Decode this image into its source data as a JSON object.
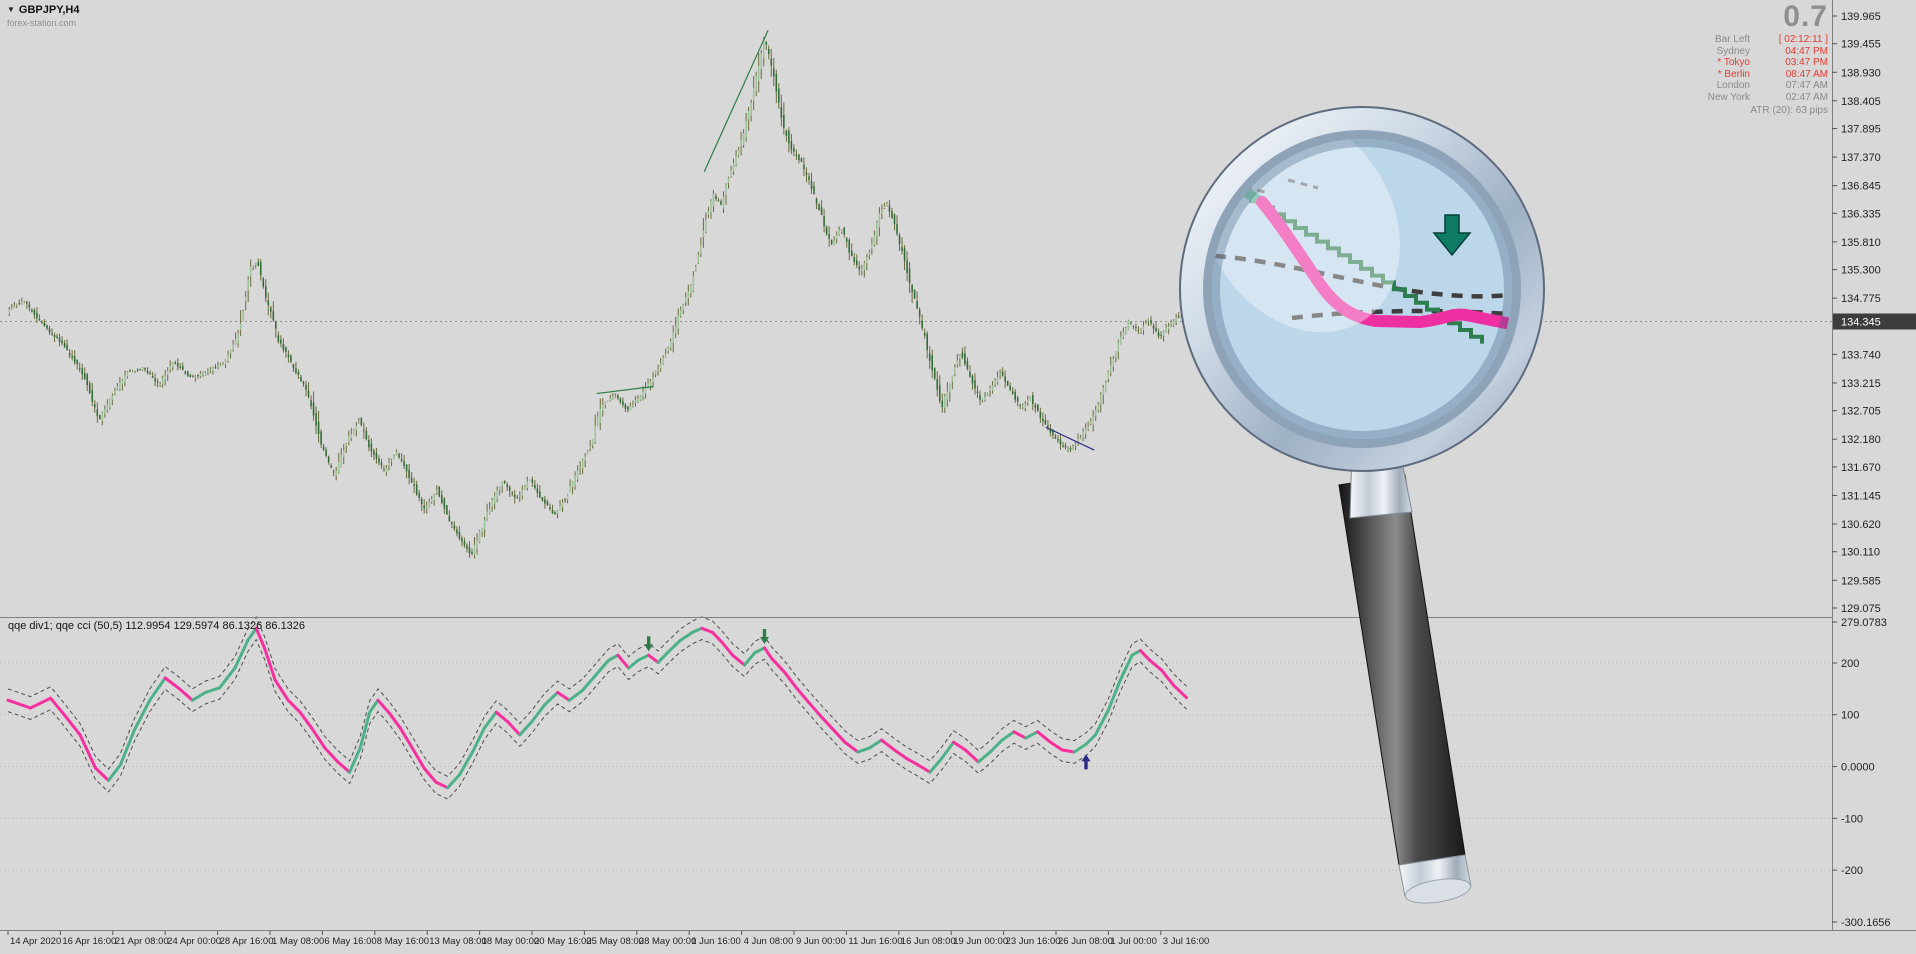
{
  "window": {
    "symbol_label": "GBPJPY,H4",
    "watermark": "forex-station.com"
  },
  "info_panel": {
    "big_value": "0.7",
    "rows": [
      {
        "label": "Bar Left",
        "value": "[ 02:12:11 ]",
        "label_color": "#8a8a8a",
        "value_color": "#e03c31"
      },
      {
        "label": "Sydney",
        "value": "04:47 PM",
        "label_color": "#8a8a8a",
        "value_color": "#e03c31"
      },
      {
        "label": "* Tokyo",
        "value": "03:47 PM",
        "label_color": "#e03c31",
        "value_color": "#e03c31"
      },
      {
        "label": "* Berlin",
        "value": "08:47 AM",
        "label_color": "#e03c31",
        "value_color": "#e03c31"
      },
      {
        "label": "London",
        "value": "07:47 AM",
        "label_color": "#8a8a8a",
        "value_color": "#8a8a8a"
      },
      {
        "label": "New York",
        "value": "02:47 AM",
        "label_color": "#8a8a8a",
        "value_color": "#8a8a8a"
      }
    ],
    "atr": "ATR (20): 63 pips"
  },
  "price_axis": {
    "labels": [
      "139.965",
      "139.455",
      "138.930",
      "138.405",
      "137.895",
      "137.370",
      "136.845",
      "136.335",
      "135.810",
      "135.300",
      "134.775",
      "133.740",
      "133.215",
      "132.705",
      "132.180",
      "131.670",
      "131.145",
      "130.620",
      "130.110",
      "129.585",
      "129.075"
    ],
    "current_price": "134.345",
    "range": [
      129.075,
      139.965
    ]
  },
  "indicator_panel": {
    "label": "qqe div1; qqe cci (50,5) 112.9954 129.5974 86.1326 86.1326",
    "axis_labels": [
      "279.0783",
      "200",
      "100",
      "0.0000",
      "-100",
      "-200",
      "-300.1656"
    ],
    "range": [
      -300.1656,
      279.0783
    ]
  },
  "time_axis": [
    "14 Apr 2020",
    "16 Apr 16:00",
    "21 Apr 08:00",
    "24 Apr 00:00",
    "28 Apr 16:00",
    "1 May 08:00",
    "6 May 16:00",
    "8 May 16:00",
    "13 May 08:00",
    "18 May 00:00",
    "20 May 16:00",
    "25 May 08:00",
    "28 May 00:00",
    "1 Jun 16:00",
    "4 Jun 08:00",
    "9 Jun 00:00",
    "11 Jun 16:00",
    "16 Jun 08:00",
    "19 Jun 00:00",
    "23 Jun 16:00",
    "26 Jun 08:00",
    "1 Jul 00:00",
    "3 Jul 16:00"
  ],
  "chart_data": [
    {
      "type": "candlestick",
      "symbol": "GBPJPY",
      "timeframe": "H4",
      "y_range": [
        129.075,
        139.965
      ],
      "bar_count": 470,
      "current_price": 134.345,
      "price_path": [
        [
          0.0,
          134.52
        ],
        [
          0.014,
          134.74
        ],
        [
          0.031,
          134.28
        ],
        [
          0.048,
          133.91
        ],
        [
          0.065,
          133.36
        ],
        [
          0.078,
          132.53
        ],
        [
          0.088,
          132.94
        ],
        [
          0.102,
          133.42
        ],
        [
          0.116,
          133.49
        ],
        [
          0.129,
          133.18
        ],
        [
          0.141,
          133.6
        ],
        [
          0.156,
          133.31
        ],
        [
          0.169,
          133.42
        ],
        [
          0.184,
          133.6
        ],
        [
          0.196,
          134.1
        ],
        [
          0.206,
          135.33
        ],
        [
          0.212,
          135.44
        ],
        [
          0.22,
          134.74
        ],
        [
          0.23,
          134.0
        ],
        [
          0.243,
          133.49
        ],
        [
          0.254,
          133.05
        ],
        [
          0.266,
          132.07
        ],
        [
          0.277,
          131.52
        ],
        [
          0.288,
          132.16
        ],
        [
          0.298,
          132.53
        ],
        [
          0.308,
          131.98
        ],
        [
          0.319,
          131.61
        ],
        [
          0.33,
          131.94
        ],
        [
          0.342,
          131.43
        ],
        [
          0.353,
          130.88
        ],
        [
          0.364,
          131.25
        ],
        [
          0.374,
          130.69
        ],
        [
          0.384,
          130.33
        ],
        [
          0.393,
          130.05
        ],
        [
          0.401,
          130.51
        ],
        [
          0.409,
          130.97
        ],
        [
          0.42,
          131.43
        ],
        [
          0.431,
          131.06
        ],
        [
          0.442,
          131.47
        ],
        [
          0.452,
          131.1
        ],
        [
          0.463,
          130.79
        ],
        [
          0.474,
          131.15
        ],
        [
          0.484,
          131.65
        ],
        [
          0.494,
          132.07
        ],
        [
          0.503,
          132.81
        ],
        [
          0.514,
          132.99
        ],
        [
          0.525,
          132.72
        ],
        [
          0.535,
          132.94
        ],
        [
          0.545,
          133.27
        ],
        [
          0.553,
          133.54
        ],
        [
          0.562,
          134.0
        ],
        [
          0.57,
          134.56
        ],
        [
          0.579,
          135.02
        ],
        [
          0.585,
          135.57
        ],
        [
          0.592,
          136.3
        ],
        [
          0.598,
          136.67
        ],
        [
          0.604,
          136.49
        ],
        [
          0.611,
          137.04
        ],
        [
          0.618,
          137.41
        ],
        [
          0.624,
          137.87
        ],
        [
          0.63,
          138.42
        ],
        [
          0.636,
          139.06
        ],
        [
          0.641,
          139.56
        ],
        [
          0.646,
          139.16
        ],
        [
          0.651,
          138.6
        ],
        [
          0.657,
          137.96
        ],
        [
          0.664,
          137.5
        ],
        [
          0.672,
          137.28
        ],
        [
          0.68,
          136.86
        ],
        [
          0.689,
          136.3
        ],
        [
          0.697,
          135.75
        ],
        [
          0.706,
          136.07
        ],
        [
          0.714,
          135.57
        ],
        [
          0.722,
          135.26
        ],
        [
          0.731,
          135.7
        ],
        [
          0.739,
          136.36
        ],
        [
          0.744,
          136.54
        ],
        [
          0.751,
          136.12
        ],
        [
          0.759,
          135.51
        ],
        [
          0.767,
          134.83
        ],
        [
          0.776,
          134.1
        ],
        [
          0.784,
          133.36
        ],
        [
          0.791,
          132.75
        ],
        [
          0.799,
          133.31
        ],
        [
          0.807,
          133.78
        ],
        [
          0.816,
          133.27
        ],
        [
          0.824,
          132.86
        ],
        [
          0.832,
          133.12
        ],
        [
          0.841,
          133.42
        ],
        [
          0.849,
          133.08
        ],
        [
          0.858,
          132.75
        ],
        [
          0.866,
          132.94
        ],
        [
          0.875,
          132.57
        ],
        [
          0.883,
          132.31
        ],
        [
          0.892,
          132.07
        ],
        [
          0.9,
          131.98
        ],
        [
          0.909,
          132.25
        ],
        [
          0.917,
          132.49
        ],
        [
          0.924,
          132.86
        ],
        [
          0.932,
          133.42
        ],
        [
          0.941,
          133.97
        ],
        [
          0.949,
          134.34
        ],
        [
          0.958,
          134.16
        ],
        [
          0.966,
          134.38
        ],
        [
          0.975,
          134.05
        ],
        [
          0.983,
          134.27
        ],
        [
          0.992,
          134.45
        ],
        [
          1.0,
          134.35
        ]
      ],
      "trendlines": [
        {
          "t1": 0.589,
          "v1": 137.1,
          "t2": 0.643,
          "v2": 139.7,
          "color_key": "trendline_green"
        },
        {
          "t1": 0.498,
          "v1": 133.02,
          "t2": 0.546,
          "v2": 133.15,
          "color_key": "trendline_green"
        },
        {
          "t1": 0.878,
          "v1": 132.4,
          "t2": 0.919,
          "v2": 131.98,
          "color_key": "trendline_navy"
        }
      ]
    },
    {
      "type": "line",
      "name": "qqe cci (50,5)",
      "y_range": [
        -300.1656,
        279.0783
      ],
      "grid_levels": [
        200,
        100,
        0,
        -100,
        -200
      ],
      "band_offset": 22,
      "points": [
        [
          0.0,
          128,
          "p"
        ],
        [
          0.019,
          113,
          "p"
        ],
        [
          0.036,
          132,
          "p"
        ],
        [
          0.048,
          99,
          "p"
        ],
        [
          0.061,
          61,
          "p"
        ],
        [
          0.074,
          -3,
          "p"
        ],
        [
          0.085,
          -27,
          "p"
        ],
        [
          0.095,
          3,
          "g"
        ],
        [
          0.107,
          71,
          "g"
        ],
        [
          0.12,
          128,
          "g"
        ],
        [
          0.133,
          171,
          "g"
        ],
        [
          0.144,
          152,
          "p"
        ],
        [
          0.156,
          128,
          "p"
        ],
        [
          0.167,
          143,
          "g"
        ],
        [
          0.179,
          152,
          "g"
        ],
        [
          0.192,
          190,
          "g"
        ],
        [
          0.203,
          244,
          "g"
        ],
        [
          0.21,
          267,
          "g"
        ],
        [
          0.217,
          229,
          "p"
        ],
        [
          0.226,
          167,
          "p"
        ],
        [
          0.237,
          128,
          "p"
        ],
        [
          0.247,
          105,
          "p"
        ],
        [
          0.257,
          74,
          "p"
        ],
        [
          0.268,
          36,
          "p"
        ],
        [
          0.279,
          9,
          "p"
        ],
        [
          0.289,
          -11,
          "p"
        ],
        [
          0.298,
          36,
          "g"
        ],
        [
          0.306,
          105,
          "g"
        ],
        [
          0.313,
          128,
          "g"
        ],
        [
          0.322,
          105,
          "p"
        ],
        [
          0.332,
          74,
          "p"
        ],
        [
          0.342,
          36,
          "p"
        ],
        [
          0.352,
          -3,
          "p"
        ],
        [
          0.362,
          -30,
          "p"
        ],
        [
          0.372,
          -41,
          "p"
        ],
        [
          0.382,
          -16,
          "g"
        ],
        [
          0.393,
          28,
          "g"
        ],
        [
          0.403,
          74,
          "g"
        ],
        [
          0.413,
          105,
          "g"
        ],
        [
          0.423,
          86,
          "p"
        ],
        [
          0.433,
          61,
          "p"
        ],
        [
          0.443,
          86,
          "g"
        ],
        [
          0.454,
          119,
          "g"
        ],
        [
          0.465,
          143,
          "g"
        ],
        [
          0.475,
          128,
          "p"
        ],
        [
          0.486,
          147,
          "g"
        ],
        [
          0.497,
          176,
          "g"
        ],
        [
          0.508,
          205,
          "g"
        ],
        [
          0.516,
          215,
          "g"
        ],
        [
          0.525,
          190,
          "p"
        ],
        [
          0.533,
          205,
          "g"
        ],
        [
          0.542,
          215,
          "g"
        ],
        [
          0.55,
          201,
          "p"
        ],
        [
          0.558,
          220,
          "g"
        ],
        [
          0.569,
          244,
          "g"
        ],
        [
          0.579,
          259,
          "g"
        ],
        [
          0.587,
          267,
          "g"
        ],
        [
          0.596,
          259,
          "p"
        ],
        [
          0.604,
          240,
          "p"
        ],
        [
          0.613,
          215,
          "p"
        ],
        [
          0.623,
          196,
          "p"
        ],
        [
          0.632,
          220,
          "g"
        ],
        [
          0.64,
          229,
          "g"
        ],
        [
          0.646,
          209,
          "p"
        ],
        [
          0.657,
          182,
          "p"
        ],
        [
          0.667,
          152,
          "p"
        ],
        [
          0.677,
          125,
          "p"
        ],
        [
          0.687,
          99,
          "p"
        ],
        [
          0.697,
          74,
          "p"
        ],
        [
          0.708,
          47,
          "p"
        ],
        [
          0.719,
          28,
          "p"
        ],
        [
          0.729,
          36,
          "g"
        ],
        [
          0.739,
          51,
          "g"
        ],
        [
          0.75,
          32,
          "p"
        ],
        [
          0.76,
          16,
          "p"
        ],
        [
          0.77,
          3,
          "p"
        ],
        [
          0.78,
          -11,
          "p"
        ],
        [
          0.79,
          16,
          "g"
        ],
        [
          0.8,
          47,
          "g"
        ],
        [
          0.81,
          32,
          "p"
        ],
        [
          0.821,
          9,
          "p"
        ],
        [
          0.831,
          28,
          "g"
        ],
        [
          0.841,
          51,
          "g"
        ],
        [
          0.851,
          67,
          "g"
        ],
        [
          0.861,
          55,
          "p"
        ],
        [
          0.871,
          67,
          "g"
        ],
        [
          0.882,
          47,
          "p"
        ],
        [
          0.892,
          32,
          "p"
        ],
        [
          0.902,
          28,
          "p"
        ],
        [
          0.912,
          43,
          "g"
        ],
        [
          0.92,
          61,
          "g"
        ],
        [
          0.931,
          109,
          "g"
        ],
        [
          0.941,
          167,
          "g"
        ],
        [
          0.951,
          215,
          "g"
        ],
        [
          0.958,
          224,
          "g"
        ],
        [
          0.966,
          205,
          "p"
        ],
        [
          0.976,
          186,
          "p"
        ],
        [
          0.986,
          157,
          "p"
        ],
        [
          0.997,
          133,
          "p"
        ]
      ],
      "arrows": [
        {
          "t": 0.542,
          "v": 238,
          "dir": "down",
          "color_key": "arrow_down"
        },
        {
          "t": 0.64,
          "v": 252,
          "dir": "down",
          "color_key": "arrow_down"
        },
        {
          "t": 0.912,
          "v": 8,
          "dir": "up",
          "color_key": "arrow_up"
        }
      ]
    }
  ],
  "colors": {
    "background": "#d8d8d8",
    "axis_text": "#1f1f1f",
    "separator": "#808080",
    "current_price_bg": "#3d3d3d",
    "current_price_text": "#ffffff",
    "candle_up_fill": "#9dc49a",
    "candle_down_fill": "#2f6b35",
    "wick": "#6b6b3d",
    "qqe_green": "#4cb187",
    "qqe_pink": "#f72f9e",
    "band_gray": "#4f4f4f",
    "arrow_down": "#2f7d46",
    "arrow_up": "#2b2b86",
    "trendline_green": "#2f7d46",
    "trendline_navy": "#2b2b86",
    "grid_dotted": "#b4b4b4",
    "magnifier_lens": "#bcd6ea",
    "magnifier_rim_edge": "#5c6b7d",
    "magnifier_green_arrow": "#0e7b66",
    "magnifier_pink": "#ee2fa2",
    "magnifier_teal": "#45b289",
    "magnifier_step_green": "#2e7d4f"
  }
}
